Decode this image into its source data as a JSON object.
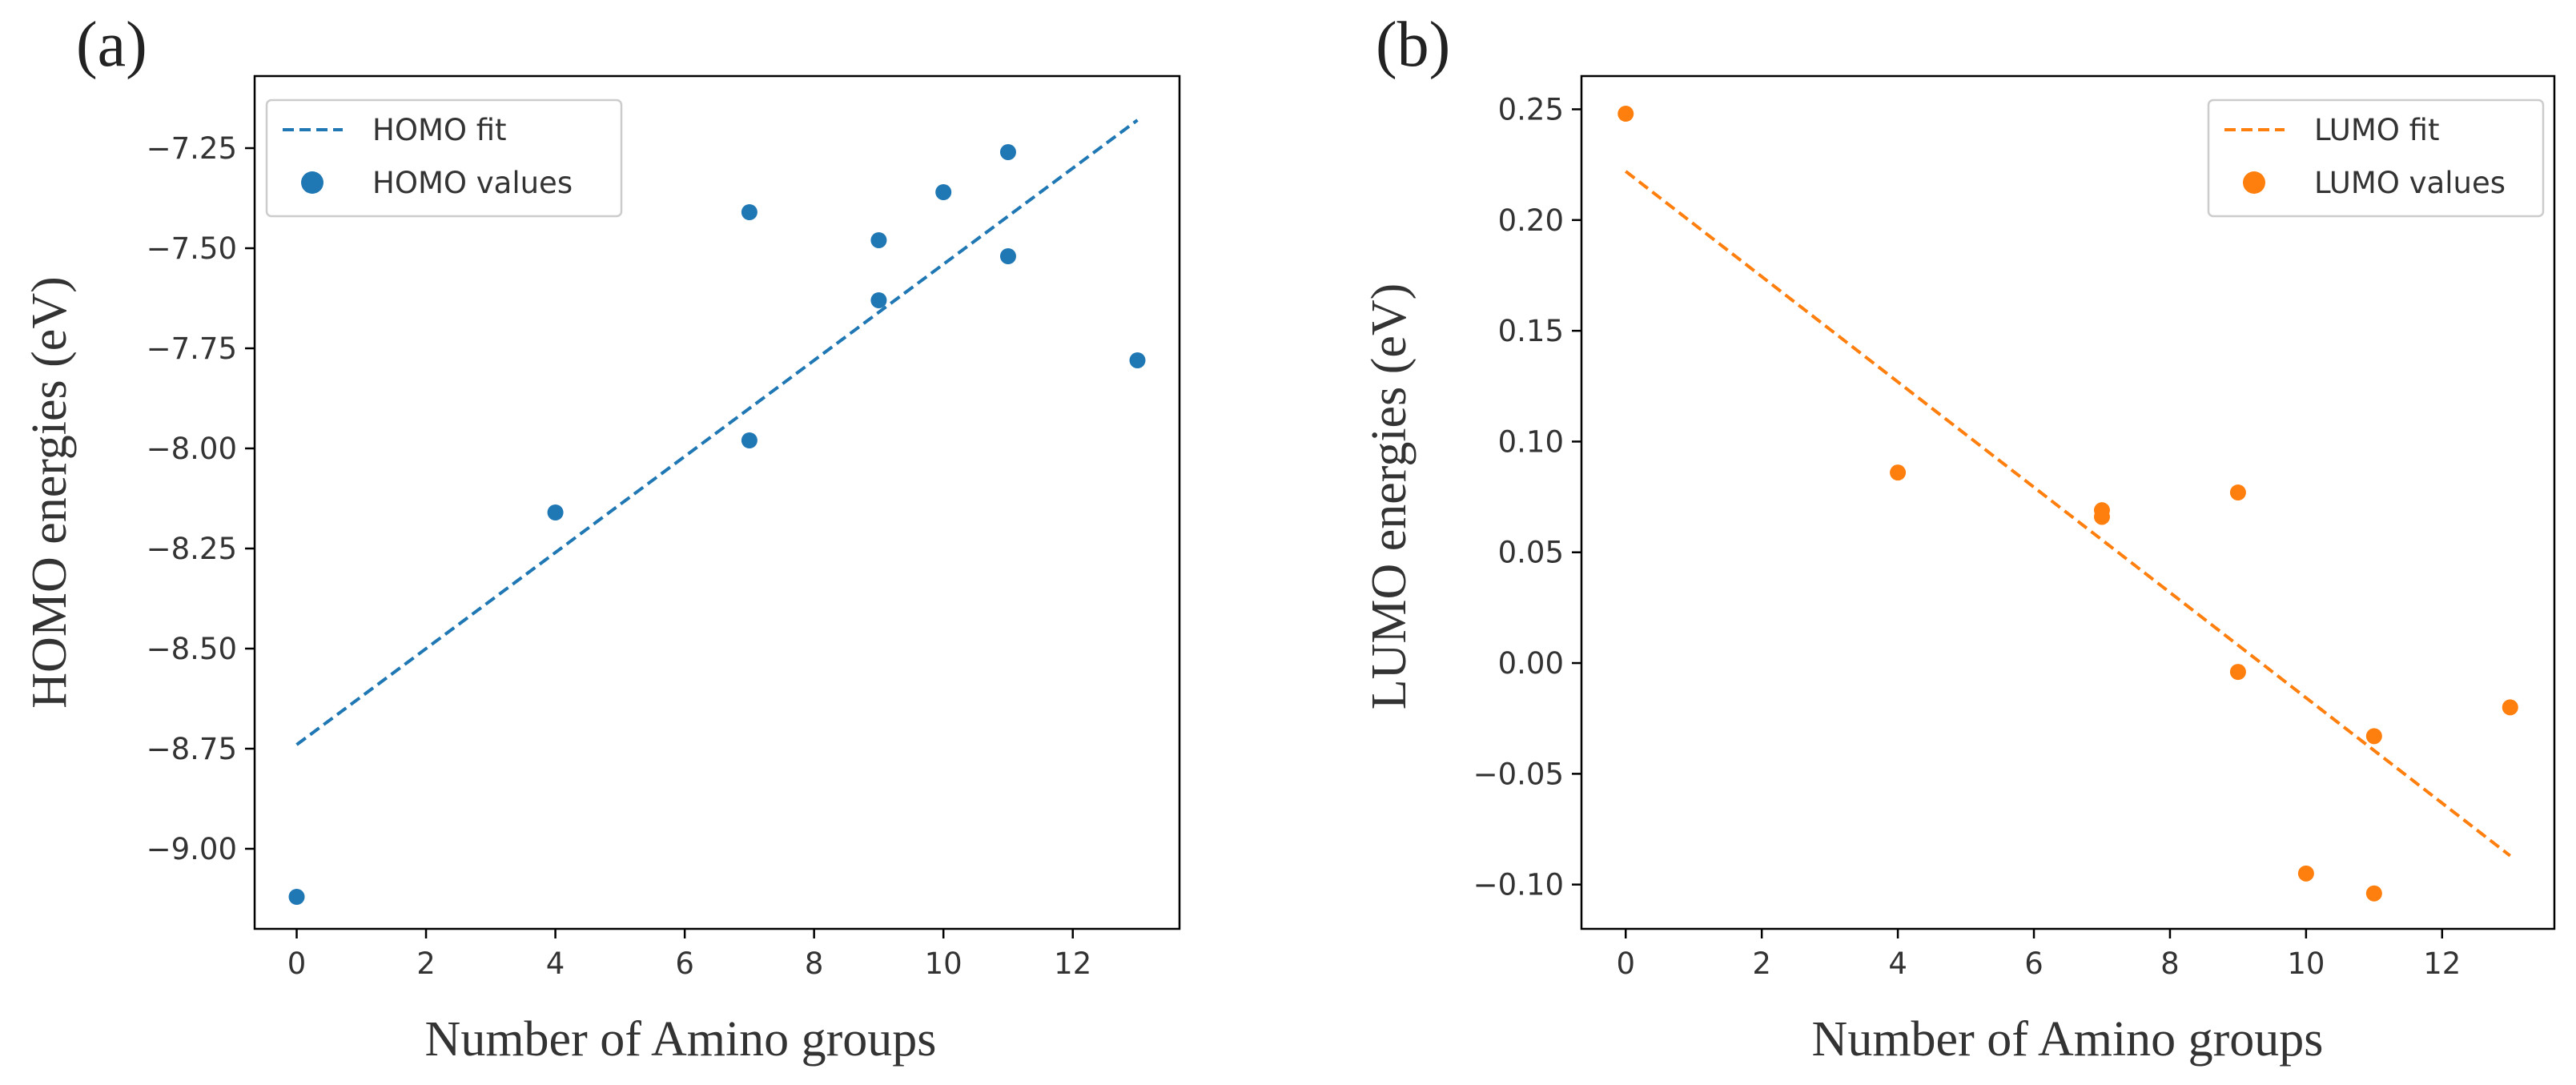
{
  "chart_data": [
    {
      "type": "scatter",
      "panel_label": "(a)",
      "xlabel": "Number of Amino groups",
      "ylabel": "HOMO energies (eV)",
      "xlim": [
        -0.65,
        13.65
      ],
      "ylim": [
        -9.2,
        -7.07
      ],
      "xticks": [
        0,
        2,
        4,
        6,
        8,
        10,
        12
      ],
      "xtick_labels": [
        "0",
        "2",
        "4",
        "6",
        "8",
        "10",
        "12"
      ],
      "yticks": [
        -9.0,
        -8.75,
        -8.5,
        -8.25,
        -8.0,
        -7.75,
        -7.5,
        -7.25
      ],
      "ytick_labels": [
        "−9.00",
        "−8.75",
        "−8.50",
        "−8.25",
        "−8.00",
        "−7.75",
        "−7.50",
        "−7.25"
      ],
      "legend_position": "upper-left",
      "color": "#1f77b4",
      "points": [
        {
          "x": 0,
          "y": -9.12
        },
        {
          "x": 4,
          "y": -8.16
        },
        {
          "x": 7,
          "y": -7.41
        },
        {
          "x": 7,
          "y": -7.98
        },
        {
          "x": 9,
          "y": -7.48
        },
        {
          "x": 9,
          "y": -7.63
        },
        {
          "x": 10,
          "y": -7.36
        },
        {
          "x": 11,
          "y": -7.26
        },
        {
          "x": 11,
          "y": -7.52
        },
        {
          "x": 13,
          "y": -7.78
        }
      ],
      "fit": {
        "x": [
          0,
          13
        ],
        "y": [
          -8.74,
          -7.18
        ]
      },
      "series": [
        {
          "name": "HOMO fit",
          "kind": "dashed-line"
        },
        {
          "name": "HOMO values",
          "kind": "markers"
        }
      ]
    },
    {
      "type": "scatter",
      "panel_label": "(b)",
      "xlabel": "Number of Amino groups",
      "ylabel": "LUMO  energies (eV)",
      "xlim": [
        -0.65,
        13.65
      ],
      "ylim": [
        -0.12,
        0.265
      ],
      "xticks": [
        0,
        2,
        4,
        6,
        8,
        10,
        12
      ],
      "xtick_labels": [
        "0",
        "2",
        "4",
        "6",
        "8",
        "10",
        "12"
      ],
      "yticks": [
        -0.1,
        -0.05,
        0.0,
        0.05,
        0.1,
        0.15,
        0.2,
        0.25
      ],
      "ytick_labels": [
        "−0.10",
        "−0.05",
        "0.00",
        "0.05",
        "0.10",
        "0.15",
        "0.20",
        "0.25"
      ],
      "legend_position": "upper-right",
      "color": "#ff7f0e",
      "points": [
        {
          "x": 0,
          "y": 0.248
        },
        {
          "x": 4,
          "y": 0.086
        },
        {
          "x": 7,
          "y": 0.069
        },
        {
          "x": 7,
          "y": 0.066
        },
        {
          "x": 9,
          "y": 0.077
        },
        {
          "x": 9,
          "y": -0.004
        },
        {
          "x": 10,
          "y": -0.095
        },
        {
          "x": 11,
          "y": -0.033
        },
        {
          "x": 11,
          "y": -0.104
        },
        {
          "x": 13,
          "y": -0.02
        }
      ],
      "fit": {
        "x": [
          0,
          13
        ],
        "y": [
          0.222,
          -0.087
        ]
      },
      "series": [
        {
          "name": "LUMO fit",
          "kind": "dashed-line"
        },
        {
          "name": "LUMO values",
          "kind": "markers"
        }
      ]
    }
  ]
}
